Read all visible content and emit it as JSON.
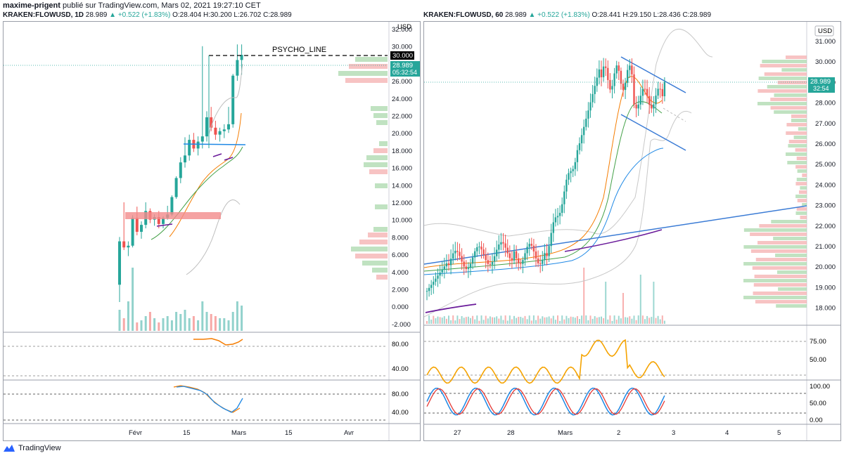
{
  "header": {
    "author": "maxime-prigent",
    "published": "publié sur TradingView.com, Mars 02, 2021 19:27:10 CET"
  },
  "footer": {
    "brand": "TradingView"
  },
  "left": {
    "symbol": "KRAKEN:FLOWUSD, 1D",
    "last": "28.989",
    "change": "▲ +0.522 (+1.83%)",
    "ohlc": "O:28.404  H:30.200  L:26.702  C:28.989",
    "currency": "USD",
    "price_tag": "28.989",
    "countdown": "05:32:54",
    "level_tag": "30.000",
    "psycho": "PSYCHO_LINE",
    "yticks": [
      "32.000",
      "30.000",
      "28.000",
      "26.000",
      "24.000",
      "22.000",
      "20.000",
      "18.000",
      "16.000",
      "14.000",
      "12.000",
      "10.000",
      "8.000",
      "6.000",
      "4.000",
      "2.000",
      "0.000",
      "-2.000"
    ],
    "rsi_ticks": [
      "80.00",
      "40.00"
    ],
    "stoch_ticks": [
      "80.00",
      "40.00"
    ],
    "xticks": [
      "Févr",
      "15",
      "Mars",
      "15",
      "Avr"
    ]
  },
  "right": {
    "symbol": "KRAKEN:FLOWUSD, 60",
    "last": "28.989",
    "change": "▲ +0.522 (+1.83%)",
    "ohlc": "O:28.441  H:29.150  L:28.436  C:28.989",
    "currency": "USD",
    "price_tag": "28.989",
    "countdown": "32:54",
    "yticks": [
      "31.000",
      "30.000",
      "29.000",
      "28.000",
      "27.000",
      "26.000",
      "25.000",
      "24.000",
      "23.000",
      "22.000",
      "21.000",
      "20.000",
      "19.000",
      "18.000"
    ],
    "rsi_ticks": [
      "75.00",
      "50.00"
    ],
    "stoch_ticks": [
      "100.00",
      "50.00",
      "0.00"
    ],
    "xticks": [
      "27",
      "28",
      "Mars",
      "2",
      "3",
      "4",
      "5"
    ]
  },
  "colors": {
    "up": "#26a69a",
    "down": "#ef5350",
    "ema_fast": "#f57c00",
    "ema_mid": "#43a047",
    "ema_slow": "#1e88e5",
    "purple": "#6a1b9a",
    "trend": "#3a7bd5"
  },
  "chart_data": [
    {
      "type": "candlestick",
      "title": "KRAKEN:FLOWUSD, 1D",
      "ylim": [
        -2,
        32
      ],
      "candles": [
        [
          2.5,
          8.0,
          0.5,
          7.5
        ],
        [
          7.5,
          12.0,
          6.5,
          6.8
        ],
        [
          6.8,
          7.5,
          5.8,
          7.0
        ],
        [
          7.0,
          10.5,
          6.8,
          10.2
        ],
        [
          10.2,
          11.5,
          8.2,
          8.6
        ],
        [
          8.6,
          9.8,
          7.8,
          9.4
        ],
        [
          9.4,
          12.0,
          9.0,
          11.0
        ],
        [
          11.0,
          11.3,
          9.6,
          10.0
        ],
        [
          10.0,
          10.6,
          9.3,
          10.3
        ],
        [
          10.3,
          11.0,
          9.0,
          9.5
        ],
        [
          9.5,
          10.4,
          9.0,
          10.2
        ],
        [
          10.2,
          11.6,
          10.0,
          10.6
        ],
        [
          10.6,
          12.8,
          10.4,
          12.6
        ],
        [
          12.6,
          15.0,
          12.4,
          14.8
        ],
        [
          14.8,
          17.2,
          14.2,
          16.6
        ],
        [
          16.6,
          19.5,
          16.0,
          17.4
        ],
        [
          17.4,
          19.8,
          16.8,
          19.2
        ],
        [
          19.2,
          20.0,
          17.8,
          18.2
        ],
        [
          18.2,
          19.6,
          17.4,
          19.0
        ],
        [
          19.0,
          30.0,
          18.2,
          19.6
        ],
        [
          19.6,
          22.5,
          19.0,
          21.8
        ],
        [
          21.8,
          23.0,
          20.2,
          20.6
        ],
        [
          20.6,
          21.4,
          19.2,
          19.8
        ],
        [
          19.8,
          20.6,
          19.0,
          20.2
        ],
        [
          20.2,
          21.0,
          19.4,
          20.4
        ],
        [
          20.4,
          23.0,
          20.0,
          21.0
        ],
        [
          21.0,
          26.8,
          20.6,
          26.6
        ],
        [
          26.6,
          30.2,
          26.0,
          28.4
        ],
        [
          28.404,
          30.2,
          26.702,
          28.989
        ]
      ],
      "levels": {
        "psycho_line": 30.0,
        "support": 19.8
      }
    },
    {
      "type": "candlestick",
      "title": "KRAKEN:FLOWUSD, 60",
      "ylim": [
        17.5,
        31.5
      ],
      "levels": {
        "last": 28.989
      },
      "channel": {
        "upper": [
          [
            29.9,
            "2"
          ],
          [
            28.6,
            "3"
          ]
        ],
        "lower": [
          [
            27.4,
            "2"
          ],
          [
            25.6,
            "3"
          ]
        ]
      }
    }
  ]
}
